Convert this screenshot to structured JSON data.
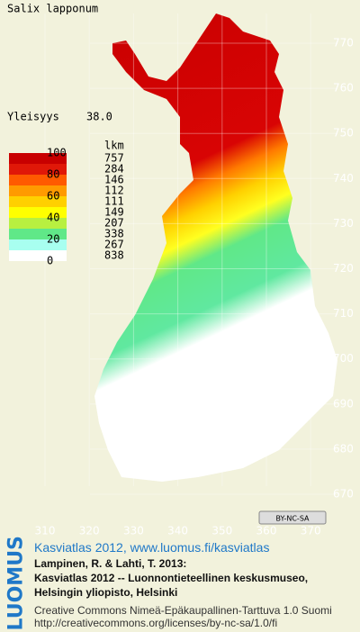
{
  "title": "Salix lapponum",
  "frequency": {
    "label": "Yleisyys",
    "value": "38.0"
  },
  "legend": {
    "scale_labels": [
      "100",
      "80",
      "60",
      "40",
      "20",
      "0"
    ],
    "count_header": "lkm",
    "counts": [
      757,
      284,
      146,
      112,
      111,
      149,
      207,
      338,
      267,
      838
    ],
    "colors": [
      "#c80000",
      "#e01808",
      "#ff5a00",
      "#ff9a00",
      "#ffd000",
      "#ffff00",
      "#b8f040",
      "#60e888",
      "#a8fff0",
      "#ffffff"
    ]
  },
  "map": {
    "y_axis_labels": [
      770,
      760,
      750,
      740,
      730,
      720,
      710,
      700,
      690,
      680,
      670
    ],
    "x_axis_labels": [
      310,
      320,
      330,
      340,
      350,
      360,
      370
    ],
    "license_badge": "BY-NC-SA"
  },
  "footer": {
    "logo": "LUOMUS",
    "link": "Kasviatlas 2012, www.luomus.fi/kasviatlas",
    "citation": [
      "Lampinen, R. & Lahti, T. 2013:",
      "Kasviatlas 2012 -- Luonnontieteellinen keskusmuseo,",
      "Helsingin yliopisto, Helsinki"
    ],
    "license": [
      "Creative Commons Nimeä-Epäkaupallinen-Tarttuva 1.0 Suomi",
      "http://creativecommons.org/licenses/by-nc-sa/1.0/fi"
    ]
  }
}
